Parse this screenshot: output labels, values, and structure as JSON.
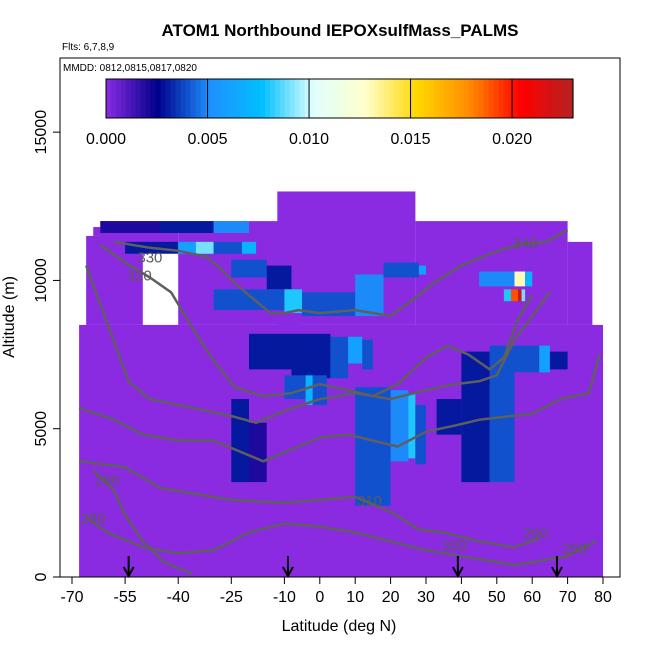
{
  "chart_data": {
    "type": "heatmap",
    "title": "ATOM1 Northbound IEPOXsulfMass_PALMS",
    "flights_text": "Flts: 6,7,8,9",
    "dates_text": "MMDD: 0812,0815,0817,0820",
    "xlabel": "Latitude (deg N)",
    "ylabel": "Altitude (m)",
    "xlim": [
      -70,
      80
    ],
    "ylim": [
      0,
      17500
    ],
    "x_ticks": [
      -70,
      -55,
      -40,
      -25,
      -10,
      0,
      10,
      20,
      30,
      40,
      50,
      60,
      70,
      80
    ],
    "x_tick_labels": [
      "-70",
      "-55",
      "-40",
      "-25",
      "-10",
      "0",
      "10",
      "20",
      "30",
      "40",
      "50",
      "60",
      "70",
      "80"
    ],
    "y_ticks": [
      0,
      5000,
      10000,
      15000
    ],
    "y_tick_labels": [
      "0",
      "5000",
      "10000",
      "15000"
    ],
    "colorbar": {
      "range": [
        0,
        0.023
      ],
      "tick_values": [
        0,
        0.005,
        0.01,
        0.015,
        0.02
      ],
      "tick_labels": [
        "0.000",
        "0.005",
        "0.010",
        "0.015",
        "0.020"
      ],
      "colors": [
        "#8a2be2",
        "#00008b",
        "#1e90ff",
        "#00bfff",
        "#e0ffff",
        "#ffffcc",
        "#ffd700",
        "#ff8c00",
        "#ff0000",
        "#b22222"
      ]
    },
    "background_color": "#8a2be2",
    "coverage": [
      {
        "x": [
          -68,
          80
        ],
        "y": [
          0,
          8500
        ]
      },
      {
        "x": [
          -66,
          -50
        ],
        "y": [
          8500,
          11500
        ]
      },
      {
        "x": [
          -64,
          -56
        ],
        "y": [
          11500,
          11800
        ]
      },
      {
        "x": [
          -62,
          -40
        ],
        "y": [
          11000,
          12000
        ]
      },
      {
        "x": [
          -40,
          -5
        ],
        "y": [
          8500,
          12000
        ]
      },
      {
        "x": [
          -12,
          27
        ],
        "y": [
          8500,
          13000
        ]
      },
      {
        "x": [
          27,
          70
        ],
        "y": [
          8500,
          12000
        ]
      },
      {
        "x": [
          70,
          77
        ],
        "y": [
          8500,
          11300
        ]
      }
    ],
    "cells": [
      {
        "x": [
          -62,
          -45
        ],
        "y": [
          11600,
          12000
        ],
        "v": 0.002
      },
      {
        "x": [
          -45,
          -30
        ],
        "y": [
          11600,
          12000
        ],
        "v": 0.003
      },
      {
        "x": [
          -30,
          -20
        ],
        "y": [
          11600,
          12000
        ],
        "v": 0.005
      },
      {
        "x": [
          -55,
          -40
        ],
        "y": [
          10900,
          11300
        ],
        "v": 0.003
      },
      {
        "x": [
          -40,
          -30
        ],
        "y": [
          10900,
          11300
        ],
        "v": 0.006
      },
      {
        "x": [
          -35,
          -30
        ],
        "y": [
          10900,
          11300
        ],
        "v": 0.009
      },
      {
        "x": [
          -30,
          -22
        ],
        "y": [
          10900,
          11300
        ],
        "v": 0.004
      },
      {
        "x": [
          -22,
          -18
        ],
        "y": [
          10900,
          11300
        ],
        "v": 0.007
      },
      {
        "x": [
          -25,
          -15
        ],
        "y": [
          10100,
          10700
        ],
        "v": 0.004
      },
      {
        "x": [
          -15,
          -8
        ],
        "y": [
          9700,
          10500
        ],
        "v": 0.003
      },
      {
        "x": [
          -30,
          -10
        ],
        "y": [
          9000,
          9700
        ],
        "v": 0.004
      },
      {
        "x": [
          -10,
          -5
        ],
        "y": [
          8900,
          9700
        ],
        "v": 0.008
      },
      {
        "x": [
          -5,
          10
        ],
        "y": [
          8800,
          9600
        ],
        "v": 0.004
      },
      {
        "x": [
          10,
          18
        ],
        "y": [
          8800,
          10200
        ],
        "v": 0.005
      },
      {
        "x": [
          18,
          28
        ],
        "y": [
          10100,
          10600
        ],
        "v": 0.004
      },
      {
        "x": [
          28,
          30
        ],
        "y": [
          10200,
          10500
        ],
        "v": 0.006
      },
      {
        "x": [
          45,
          55
        ],
        "y": [
          9800,
          10300
        ],
        "v": 0.005
      },
      {
        "x": [
          55,
          58
        ],
        "y": [
          9800,
          10300
        ],
        "v": 0.013
      },
      {
        "x": [
          58,
          60
        ],
        "y": [
          9800,
          10300
        ],
        "v": 0.007
      },
      {
        "x": [
          52,
          54
        ],
        "y": [
          9300,
          9700
        ],
        "v": 0.008
      },
      {
        "x": [
          54,
          56
        ],
        "y": [
          9300,
          9700
        ],
        "v": 0.019
      },
      {
        "x": [
          56,
          57
        ],
        "y": [
          9300,
          9700
        ],
        "v": 0.022
      },
      {
        "x": [
          57,
          58
        ],
        "y": [
          9300,
          9700
        ],
        "v": 0.009
      },
      {
        "x": [
          -20,
          -8
        ],
        "y": [
          7000,
          8200
        ],
        "v": 0.003
      },
      {
        "x": [
          -8,
          3
        ],
        "y": [
          6700,
          8200
        ],
        "v": 0.003
      },
      {
        "x": [
          3,
          8
        ],
        "y": [
          6700,
          8100
        ],
        "v": 0.004
      },
      {
        "x": [
          8,
          12
        ],
        "y": [
          7200,
          8100
        ],
        "v": 0.006
      },
      {
        "x": [
          12,
          15
        ],
        "y": [
          7000,
          8000
        ],
        "v": 0.004
      },
      {
        "x": [
          -10,
          -4
        ],
        "y": [
          6000,
          6800
        ],
        "v": 0.004
      },
      {
        "x": [
          -4,
          -2
        ],
        "y": [
          5800,
          6800
        ],
        "v": 0.007
      },
      {
        "x": [
          -2,
          2
        ],
        "y": [
          5800,
          6800
        ],
        "v": 0.004
      },
      {
        "x": [
          -25,
          -20
        ],
        "y": [
          3200,
          6000
        ],
        "v": 0.003
      },
      {
        "x": [
          -20,
          -15
        ],
        "y": [
          3200,
          5200
        ],
        "v": 0.002
      },
      {
        "x": [
          10,
          20
        ],
        "y": [
          2400,
          6400
        ],
        "v": 0.004
      },
      {
        "x": [
          20,
          25
        ],
        "y": [
          3900,
          6300
        ],
        "v": 0.005
      },
      {
        "x": [
          25,
          27
        ],
        "y": [
          4000,
          6200
        ],
        "v": 0.008
      },
      {
        "x": [
          27,
          30
        ],
        "y": [
          3800,
          5800
        ],
        "v": 0.004
      },
      {
        "x": [
          33,
          40
        ],
        "y": [
          4800,
          6000
        ],
        "v": 0.003
      },
      {
        "x": [
          40,
          48
        ],
        "y": [
          3200,
          7600
        ],
        "v": 0.003
      },
      {
        "x": [
          48,
          55
        ],
        "y": [
          3200,
          7800
        ],
        "v": 0.004
      },
      {
        "x": [
          55,
          62
        ],
        "y": [
          6900,
          7800
        ],
        "v": 0.004
      },
      {
        "x": [
          62,
          65
        ],
        "y": [
          6900,
          7800
        ],
        "v": 0.006
      },
      {
        "x": [
          65,
          70
        ],
        "y": [
          7000,
          7600
        ],
        "v": 0.003
      }
    ],
    "contours": [
      {
        "level": "280",
        "points": [
          [
            -64,
            3600
          ],
          [
            -58,
            2900
          ],
          [
            -55,
            2100
          ],
          [
            -50,
            1200
          ],
          [
            -44,
            500
          ],
          [
            -36,
            100
          ]
        ]
      },
      {
        "level": "290",
        "points": [
          [
            -66,
            2000
          ],
          [
            -60,
            1500
          ],
          [
            -50,
            1000
          ],
          [
            -40,
            800
          ],
          [
            -30,
            900
          ],
          [
            -20,
            1500
          ],
          [
            -10,
            1800
          ],
          [
            0,
            1700
          ],
          [
            10,
            1500
          ],
          [
            20,
            1200
          ],
          [
            30,
            900
          ],
          [
            40,
            700
          ],
          [
            55,
            400
          ],
          [
            70,
            700
          ],
          [
            78,
            1200
          ]
        ]
      },
      {
        "level": "300",
        "points": [
          [
            -68,
            3900
          ],
          [
            -55,
            3700
          ],
          [
            -45,
            3000
          ],
          [
            -35,
            2800
          ],
          [
            -25,
            2600
          ],
          [
            -10,
            2500
          ],
          [
            0,
            2600
          ],
          [
            10,
            2700
          ],
          [
            20,
            2200
          ],
          [
            28,
            1600
          ],
          [
            35,
            1500
          ],
          [
            45,
            1200
          ],
          [
            55,
            1000
          ],
          [
            62,
            1300
          ]
        ]
      },
      {
        "level": "310",
        "points": [
          [
            -68,
            5700
          ],
          [
            -58,
            5300
          ],
          [
            -50,
            4800
          ],
          [
            -40,
            4600
          ],
          [
            -30,
            4600
          ],
          [
            -22,
            4200
          ],
          [
            -16,
            3900
          ],
          [
            -8,
            4300
          ],
          [
            0,
            4700
          ],
          [
            8,
            4800
          ],
          [
            15,
            4600
          ],
          [
            22,
            4400
          ],
          [
            30,
            4900
          ],
          [
            38,
            5100
          ],
          [
            45,
            5300
          ],
          [
            52,
            5400
          ],
          [
            60,
            5500
          ],
          [
            68,
            6000
          ],
          [
            76,
            6200
          ],
          [
            79,
            7500
          ]
        ]
      },
      {
        "level": "320",
        "points": [
          [
            -66,
            10500
          ],
          [
            -62,
            9200
          ],
          [
            -58,
            7900
          ],
          [
            -54,
            6600
          ],
          [
            -48,
            6000
          ],
          [
            -40,
            5800
          ],
          [
            -32,
            5600
          ],
          [
            -24,
            5400
          ],
          [
            -18,
            5200
          ],
          [
            -10,
            5600
          ],
          [
            0,
            6000
          ],
          [
            10,
            6200
          ],
          [
            20,
            6000
          ],
          [
            30,
            6300
          ],
          [
            38,
            6500
          ],
          [
            45,
            6600
          ],
          [
            50,
            6800
          ],
          [
            55,
            8000
          ],
          [
            60,
            8800
          ],
          [
            65,
            9600
          ]
        ]
      },
      {
        "level": "330",
        "points": [
          [
            -62,
            11200
          ],
          [
            -55,
            10600
          ],
          [
            -48,
            10100
          ],
          [
            -42,
            9600
          ],
          [
            -36,
            8400
          ],
          [
            -30,
            7300
          ],
          [
            -24,
            6400
          ],
          [
            -16,
            6100
          ],
          [
            -8,
            6200
          ],
          [
            0,
            6500
          ],
          [
            8,
            6300
          ],
          [
            15,
            6100
          ],
          [
            22,
            6500
          ],
          [
            30,
            7400
          ],
          [
            36,
            7800
          ],
          [
            42,
            7500
          ],
          [
            48,
            7000
          ],
          [
            52,
            7400
          ],
          [
            56,
            8700
          ],
          [
            60,
            9500
          ]
        ]
      },
      {
        "level": "340",
        "points": [
          [
            -58,
            11300
          ],
          [
            -48,
            11100
          ],
          [
            -40,
            11000
          ],
          [
            -32,
            10800
          ],
          [
            -28,
            10400
          ],
          [
            -24,
            9900
          ],
          [
            -18,
            9300
          ],
          [
            -14,
            8900
          ],
          [
            -10,
            8900
          ],
          [
            -6,
            9000
          ],
          [
            0,
            8900
          ],
          [
            10,
            9000
          ],
          [
            20,
            8800
          ],
          [
            28,
            9500
          ],
          [
            32,
            9900
          ],
          [
            40,
            10500
          ],
          [
            48,
            10900
          ],
          [
            56,
            11200
          ],
          [
            64,
            11300
          ],
          [
            70,
            11700
          ]
        ]
      }
    ],
    "contour_labels": [
      {
        "text": "330",
        "x": -48,
        "y": 10600
      },
      {
        "text": "320",
        "x": -51,
        "y": 10000
      },
      {
        "text": "340",
        "x": 58,
        "y": 11100
      },
      {
        "text": "310",
        "x": 14,
        "y": 2400
      },
      {
        "text": "300",
        "x": 38,
        "y": 900
      },
      {
        "text": "290",
        "x": 61,
        "y": 1300
      },
      {
        "text": "280",
        "x": -60,
        "y": 3100
      },
      {
        "text": "280",
        "x": -64,
        "y": 1800
      },
      {
        "text": "280",
        "x": 72,
        "y": 800
      }
    ],
    "arrows_x": [
      -54,
      -9,
      39,
      67
    ]
  }
}
